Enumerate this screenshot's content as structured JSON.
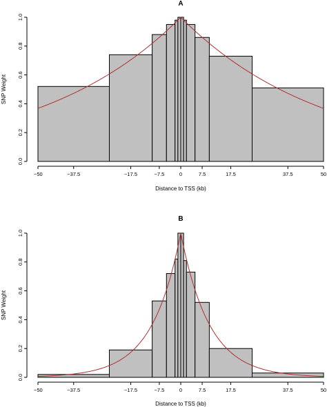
{
  "chart_data": [
    {
      "type": "bar",
      "title": "A",
      "xlabel": "Distance to TSS (kb)",
      "ylabel": "SNP Weight",
      "xlim": [
        -50,
        50
      ],
      "ylim": [
        0,
        1
      ],
      "x_ticks": [
        -50,
        -37.5,
        -17.5,
        -7.5,
        0,
        7.5,
        17.5,
        37.5,
        50
      ],
      "x_tick_labels": [
        "−50",
        "−37.5",
        "−17.5",
        "−7.5",
        "0",
        "7.5",
        "17.5",
        "37.5",
        "50"
      ],
      "y_ticks": [
        0,
        0.2,
        0.4,
        0.6,
        0.8,
        1
      ],
      "y_tick_labels": [
        "0.0",
        "0.2",
        "0.4",
        "0.6",
        "0.8",
        "1.0"
      ],
      "bins": [
        {
          "x0": -50,
          "x1": -25,
          "value": 0.52
        },
        {
          "x0": -25,
          "x1": -10,
          "value": 0.74
        },
        {
          "x0": -10,
          "x1": -5,
          "value": 0.88
        },
        {
          "x0": -5,
          "x1": -2,
          "value": 0.95
        },
        {
          "x0": -2,
          "x1": -1,
          "value": 0.98
        },
        {
          "x0": -1,
          "x1": 0,
          "value": 1.0
        },
        {
          "x0": 0,
          "x1": 1,
          "value": 1.0
        },
        {
          "x0": 1,
          "x1": 2,
          "value": 0.98
        },
        {
          "x0": 2,
          "x1": 5,
          "value": 0.95
        },
        {
          "x0": 5,
          "x1": 10,
          "value": 0.86
        },
        {
          "x0": 10,
          "x1": 25,
          "value": 0.73
        },
        {
          "x0": 25,
          "x1": 50,
          "value": 0.51
        }
      ],
      "curve": {
        "form": "exp(-|x|/scale)",
        "scale_kb": 50
      }
    },
    {
      "type": "bar",
      "title": "B",
      "xlabel": "Distance to TSS (kb)",
      "ylabel": "SNP Weight",
      "xlim": [
        -50,
        50
      ],
      "ylim": [
        0,
        1
      ],
      "x_ticks": [
        -50,
        -37.5,
        -17.5,
        -7.5,
        0,
        7.5,
        17.5,
        37.5,
        50
      ],
      "x_tick_labels": [
        "−50",
        "−37.5",
        "−17.5",
        "−7.5",
        "0",
        "7.5",
        "17.5",
        "37.5",
        "50"
      ],
      "y_ticks": [
        0,
        0.2,
        0.4,
        0.6,
        0.8,
        1
      ],
      "y_tick_labels": [
        "0.0",
        "0.2",
        "0.4",
        "0.6",
        "0.8",
        "1.0"
      ],
      "bins": [
        {
          "x0": -50,
          "x1": -25,
          "value": 0.02
        },
        {
          "x0": -25,
          "x1": -10,
          "value": 0.19
        },
        {
          "x0": -10,
          "x1": -5,
          "value": 0.53
        },
        {
          "x0": -5,
          "x1": -2,
          "value": 0.72
        },
        {
          "x0": -2,
          "x1": -1,
          "value": 0.82
        },
        {
          "x0": -1,
          "x1": 0,
          "value": 1.0
        },
        {
          "x0": 0,
          "x1": 1,
          "value": 1.0
        },
        {
          "x0": 1,
          "x1": 2,
          "value": 0.81
        },
        {
          "x0": 2,
          "x1": 5,
          "value": 0.73
        },
        {
          "x0": 5,
          "x1": 10,
          "value": 0.52
        },
        {
          "x0": 10,
          "x1": 25,
          "value": 0.2
        },
        {
          "x0": 25,
          "x1": 50,
          "value": 0.03
        }
      ],
      "curve": {
        "form": "exp(-|x|/scale)",
        "scale_kb": 10
      }
    }
  ],
  "colors": {
    "bar_fill": "#c0c0c0",
    "bar_stroke": "#000000",
    "curve": "#b03030"
  }
}
